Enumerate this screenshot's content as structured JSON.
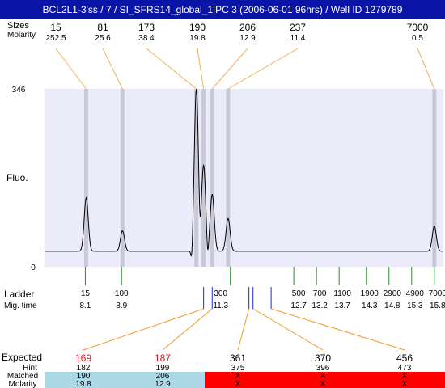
{
  "title": "BCL2L1-3'ss / 7 / SI_SFRS14_global_1|PC 3 (2006-06-01 96hrs) / Well ID 1279789",
  "labels": {
    "size_header": "Sizes",
    "molarity_header": "Molarity",
    "y_axis": "Fluo.",
    "ladder": "Ladder",
    "mig_time": "Mig. time",
    "expected": "Expected",
    "hint": "Hint",
    "matched": "Matched",
    "molarity_row": "Molarity"
  },
  "colors": {
    "title_bg": "#0a14a6",
    "plot_bg": "#ebebfa",
    "band": "#c8c8d8",
    "leader_top": "#f2b15a",
    "leader_bottom": "#f29a2e",
    "ladder_tick": "#2e8b2e",
    "sample_tick": "#1f2bd1",
    "expected_red": "#e8141e",
    "matched_blue": "#add8e6",
    "unmatched_red": "#ff0000"
  },
  "chart_data": {
    "type": "line",
    "ylim": [
      0,
      346
    ],
    "y_ticks": [
      "346",
      "0"
    ],
    "peaks": [
      {
        "size": "15",
        "molarity": "252.5",
        "mig_time": 8.12
      },
      {
        "size": "81",
        "molarity": "25.6",
        "mig_time": 8.92
      },
      {
        "size": "173",
        "molarity": "38.4",
        "mig_time": 10.55
      },
      {
        "size": "190",
        "molarity": "19.8",
        "mig_time": 10.71
      },
      {
        "size": "206",
        "molarity": "12.9",
        "mig_time": 10.9
      },
      {
        "size": "237",
        "molarity": "11.4",
        "mig_time": 11.25
      },
      {
        "size": "7000",
        "molarity": "0.5",
        "mig_time": 15.8
      }
    ],
    "trace": {
      "baseline": 30,
      "peaks": [
        {
          "mig_time": 8.12,
          "height": 134
        },
        {
          "mig_time": 8.92,
          "height": 70
        },
        {
          "mig_time": 10.55,
          "height": 346
        },
        {
          "mig_time": 10.71,
          "height": 197
        },
        {
          "mig_time": 10.9,
          "height": 141
        },
        {
          "mig_time": 11.25,
          "height": 94
        },
        {
          "mig_time": 15.8,
          "height": 79
        }
      ]
    },
    "ladder": [
      {
        "size": "15",
        "time": "8.1"
      },
      {
        "size": "100",
        "time": "8.9"
      },
      {
        "size": "300",
        "time": "11.3"
      },
      {
        "size": "500",
        "time": "12.7"
      },
      {
        "size": "700",
        "time": "13.2"
      },
      {
        "size": "1100",
        "time": "13.7"
      },
      {
        "size": "1900",
        "time": "14.3"
      },
      {
        "size": "2900",
        "time": "14.8"
      },
      {
        "size": "4900",
        "time": "15.3"
      },
      {
        "size": "7000",
        "time": "15.8"
      }
    ],
    "expected": [
      {
        "expected": "169",
        "hint": "182",
        "matched": "190",
        "molarity": "19.8",
        "is_matched": true,
        "mig_time": 10.71
      },
      {
        "expected": "187",
        "hint": "199",
        "matched": "206",
        "molarity": "12.9",
        "is_matched": true,
        "mig_time": 10.9
      },
      {
        "expected": "361",
        "hint": "375",
        "matched": "X",
        "molarity": "X",
        "is_matched": false,
        "mig_time": 11.71
      },
      {
        "expected": "370",
        "hint": "396",
        "matched": "X",
        "molarity": "X",
        "is_matched": false,
        "mig_time": 11.8
      },
      {
        "expected": "456",
        "hint": "473",
        "matched": "X",
        "molarity": "X",
        "is_matched": false,
        "mig_time": 12.2
      }
    ]
  }
}
